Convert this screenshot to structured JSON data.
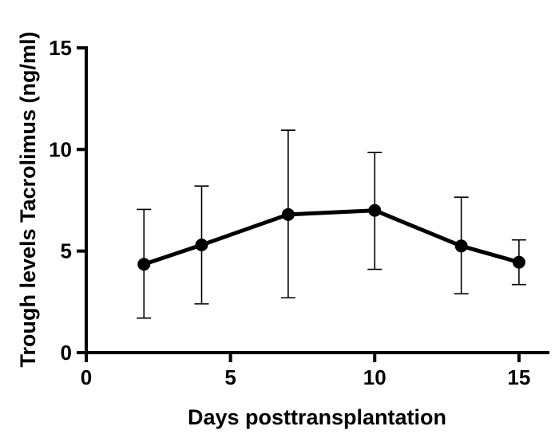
{
  "chart_data": {
    "type": "line",
    "title": "",
    "xlabel": "Days posttransplantation",
    "ylabel": "Trough levels Tacrolimus (ng/ml)",
    "xlim": [
      0,
      16
    ],
    "ylim": [
      0,
      15
    ],
    "xticks": [
      "0",
      "5",
      "10",
      "15"
    ],
    "yticks": [
      "0",
      "5",
      "10",
      "15"
    ],
    "grid": false,
    "series": [
      {
        "name": "Tacrolimus trough level",
        "color": "#000000",
        "x": [
          2,
          4,
          7,
          10,
          13,
          15
        ],
        "y": [
          4.35,
          5.3,
          6.8,
          7.0,
          5.25,
          4.45
        ],
        "err_low": [
          1.7,
          2.4,
          2.7,
          4.1,
          2.9,
          3.35
        ],
        "err_high": [
          7.05,
          8.2,
          10.95,
          9.85,
          7.65,
          5.55
        ]
      }
    ]
  }
}
